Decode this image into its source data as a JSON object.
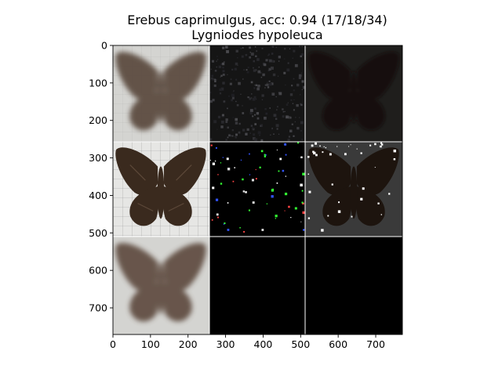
{
  "figure": {
    "title_line1": "Erebus caprimulgus, acc: 0.94 (17/18/34)",
    "title_line2": "Lygniodes hypoleuca"
  },
  "axes": {
    "x_ticks": [
      {
        "value": 0,
        "label": "0"
      },
      {
        "value": 100,
        "label": "100"
      },
      {
        "value": 200,
        "label": "200"
      },
      {
        "value": 300,
        "label": "300"
      },
      {
        "value": 400,
        "label": "400"
      },
      {
        "value": 500,
        "label": "500"
      },
      {
        "value": 600,
        "label": "600"
      },
      {
        "value": 700,
        "label": "700"
      }
    ],
    "y_ticks": [
      {
        "value": 0,
        "label": "0"
      },
      {
        "value": 100,
        "label": "100"
      },
      {
        "value": 200,
        "label": "200"
      },
      {
        "value": 300,
        "label": "300"
      },
      {
        "value": 400,
        "label": "400"
      },
      {
        "value": 500,
        "label": "500"
      },
      {
        "value": 600,
        "label": "600"
      },
      {
        "value": 700,
        "label": "700"
      }
    ],
    "x_range": [
      0,
      771
    ],
    "y_range": [
      771,
      0
    ]
  },
  "grid_images": [
    {
      "row": 0,
      "col": 0,
      "name": "blurred-reconstruction-moth",
      "tone": "light-blur"
    },
    {
      "row": 0,
      "col": 1,
      "name": "dark-noise-panel",
      "tone": "dark-noise"
    },
    {
      "row": 0,
      "col": 2,
      "name": "dim-moth-overlay",
      "tone": "dark-moth"
    },
    {
      "row": 1,
      "col": 0,
      "name": "specimen-photo-moth",
      "tone": "specimen"
    },
    {
      "row": 1,
      "col": 1,
      "name": "sparse-pixel-mask",
      "tone": "black-speckle"
    },
    {
      "row": 1,
      "col": 2,
      "name": "masked-moth-overlay",
      "tone": "dark-specimen"
    },
    {
      "row": 2,
      "col": 0,
      "name": "blurred-reconstruction-moth-2",
      "tone": "light-blur"
    },
    {
      "row": 2,
      "col": 1,
      "name": "black-panel",
      "tone": "black"
    },
    {
      "row": 2,
      "col": 2,
      "name": "black-panel-2",
      "tone": "black"
    }
  ]
}
